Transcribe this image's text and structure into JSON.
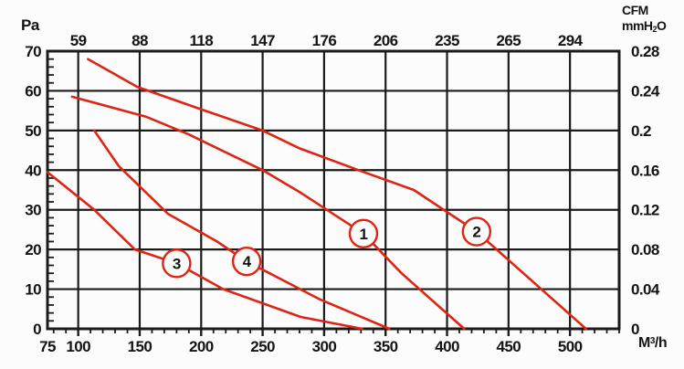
{
  "chart_data": {
    "type": "line",
    "title": "",
    "grid": true,
    "colors": {
      "curve": "#e02413",
      "grid": "#1b1b1b",
      "background": "#fcfcfc"
    },
    "x_axis_bottom": {
      "label": "M³/h",
      "range": [
        75,
        540
      ],
      "labeled_ticks": [
        75,
        100,
        150,
        200,
        250,
        300,
        350,
        400,
        450,
        500
      ],
      "minor_tick_step": 10
    },
    "x_axis_top": {
      "label": "CFM",
      "tick_labels": [
        "59",
        "88",
        "118",
        "147",
        "176",
        "206",
        "235",
        "265",
        "294"
      ],
      "tick_positions_m3h": [
        100,
        150,
        200,
        250,
        300,
        350,
        400,
        450,
        500
      ]
    },
    "y_axis_left": {
      "label": "Pa",
      "range": [
        0,
        70
      ],
      "labeled_ticks": [
        0,
        10,
        20,
        30,
        40,
        50,
        60,
        70
      ],
      "minor_tick_step": 2
    },
    "y_axis_right": {
      "label": "mmH₂O",
      "tick_labels": [
        "0.28",
        "0.24",
        "0.2",
        "0.16",
        "0.12",
        "0.08",
        "0.04",
        "0"
      ],
      "tick_positions_pa": [
        70,
        60,
        50,
        40,
        30,
        20,
        10,
        0
      ]
    },
    "series": [
      {
        "name": "1",
        "marker": [
          332,
          24
        ],
        "points": [
          [
            95,
            58.5
          ],
          [
            155,
            53.5
          ],
          [
            190,
            49
          ],
          [
            250,
            40
          ],
          [
            280,
            34.5
          ],
          [
            332,
            24
          ],
          [
            363,
            14
          ],
          [
            414,
            0
          ]
        ]
      },
      {
        "name": "2",
        "marker": [
          424,
          24.5
        ],
        "points": [
          [
            108,
            68
          ],
          [
            148,
            61
          ],
          [
            203,
            55
          ],
          [
            250,
            50
          ],
          [
            280,
            45.5
          ],
          [
            328,
            40
          ],
          [
            373,
            35
          ],
          [
            424,
            24.5
          ],
          [
            513,
            0
          ]
        ]
      },
      {
        "name": "3",
        "marker": [
          180,
          16.5
        ],
        "points": [
          [
            75,
            39.5
          ],
          [
            113,
            30
          ],
          [
            146,
            20
          ],
          [
            180,
            16.5
          ],
          [
            218,
            10
          ],
          [
            281,
            3
          ],
          [
            331,
            0
          ]
        ]
      },
      {
        "name": "4",
        "marker": [
          237,
          17
        ],
        "points": [
          [
            113,
            50
          ],
          [
            133,
            41
          ],
          [
            173,
            29
          ],
          [
            213,
            22
          ],
          [
            237,
            17
          ],
          [
            296,
            7.5
          ],
          [
            353,
            0
          ]
        ]
      }
    ]
  },
  "labels": {
    "pa": "Pa",
    "cfm": "CFM",
    "mmh2o": {
      "pre": "mmH",
      "sub": "2",
      "post": "O"
    },
    "m3h": {
      "pre": "M",
      "sup": "3",
      "post": "/h"
    }
  }
}
